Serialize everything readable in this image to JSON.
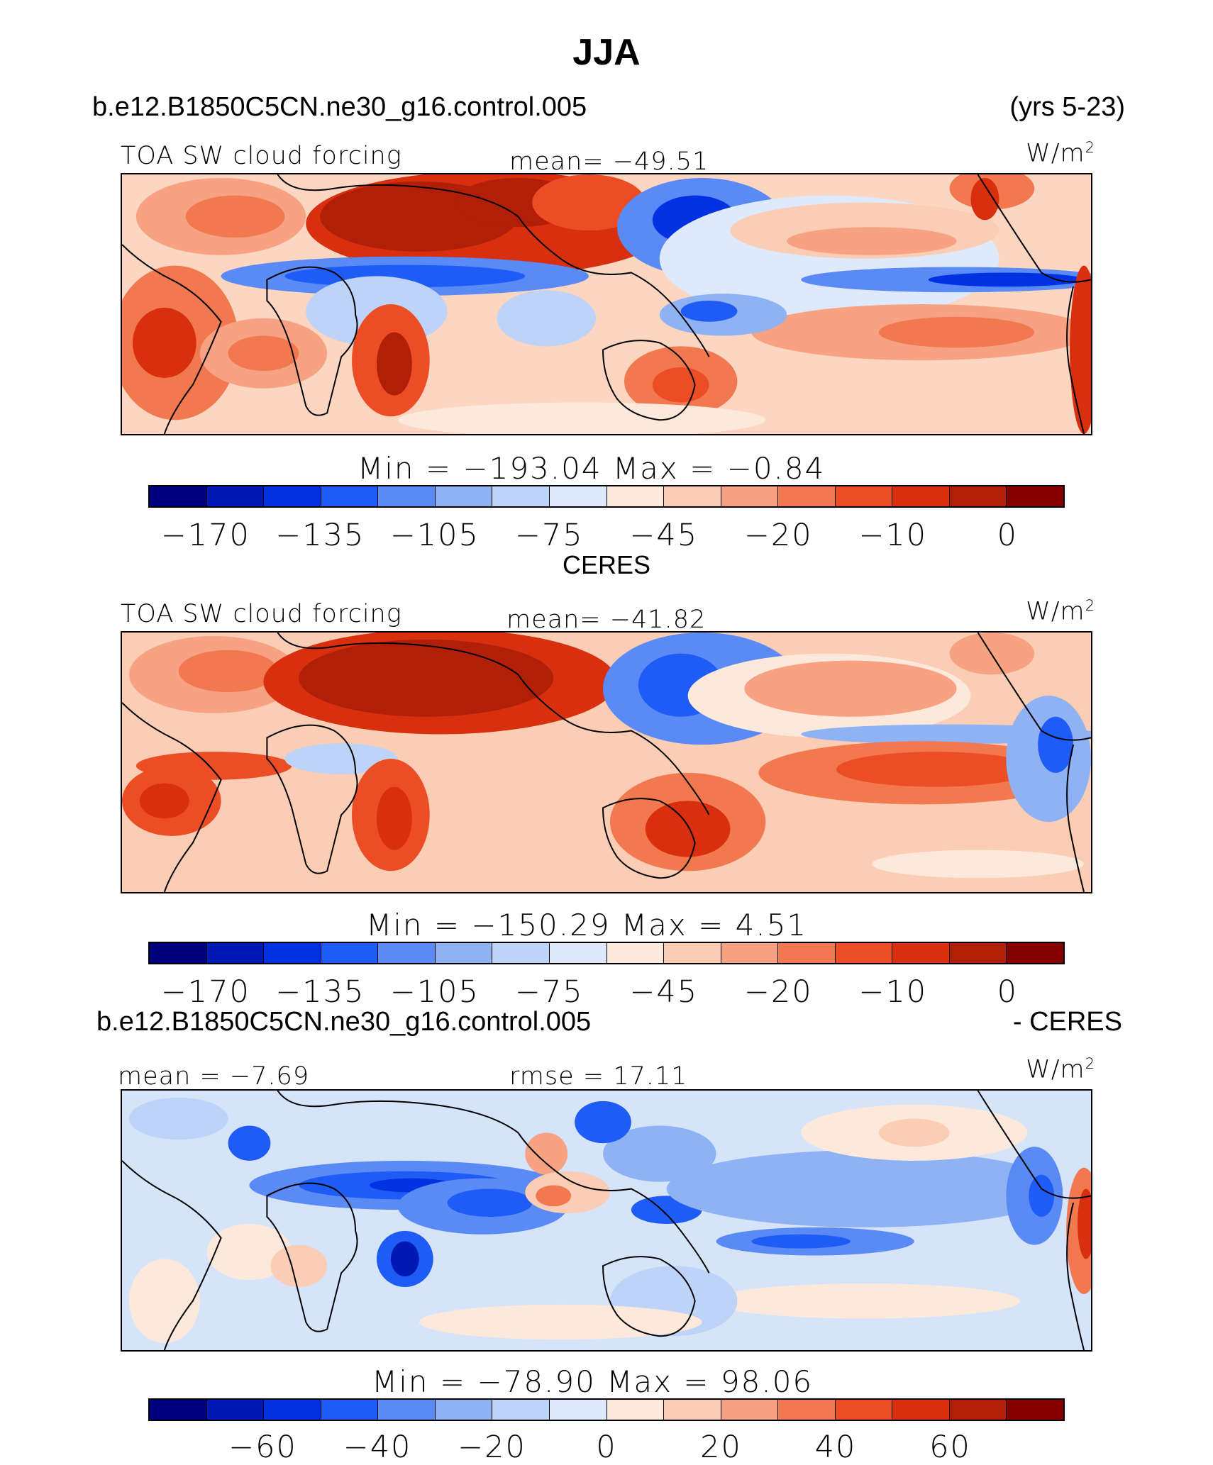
{
  "title": "JJA",
  "panels": [
    {
      "left_title": "b.e12.B1850C5CN.ne30_g16.control.005",
      "right_title": "(yrs 5-23)",
      "variable": "TOA SW cloud forcing",
      "center": "mean= −49.51",
      "units": "W/m",
      "units_sup": "2",
      "minmax": "Min  = −193.04  Max  =   −0.84",
      "ticks": [
        "−170",
        "−135",
        "−105",
        "−75",
        "−45",
        "−20",
        "−10",
        "0"
      ],
      "colors": [
        "#00007f",
        "#0019b4",
        "#0032e1",
        "#1f5cf5",
        "#5a8af5",
        "#8fb2f4",
        "#bdd3f7",
        "#deeafb",
        "#fde9dc",
        "#fbcdb4",
        "#f6a283",
        "#f2784f",
        "#ec4d25",
        "#d8300e",
        "#b11f08",
        "#850000"
      ]
    },
    {
      "left_title": "CERES",
      "right_title": "",
      "variable": "TOA SW cloud forcing",
      "center": "mean= −41.82",
      "units": "W/m",
      "units_sup": "2",
      "minmax": "Min  = −150.29  Max  =    4.51",
      "ticks": [
        "−170",
        "−135",
        "−105",
        "−75",
        "−45",
        "−20",
        "−10",
        "0"
      ],
      "colors": [
        "#00007f",
        "#0019b4",
        "#0032e1",
        "#1f5cf5",
        "#5a8af5",
        "#8fb2f4",
        "#bdd3f7",
        "#deeafb",
        "#fde9dc",
        "#fbcdb4",
        "#f6a283",
        "#f2784f",
        "#ec4d25",
        "#d8300e",
        "#b11f08",
        "#850000"
      ]
    },
    {
      "left_title": "b.e12.B1850C5CN.ne30_g16.control.005",
      "right_title": "- CERES",
      "left_stat": "mean =   −7.69",
      "center": "rmse =   17.11",
      "units": "W/m",
      "units_sup": "2",
      "minmax": "Min  = −78.90  Max  =   98.06",
      "ticks": [
        "−60",
        "−40",
        "−20",
        "0",
        "20",
        "40",
        "60"
      ],
      "colors": [
        "#00007f",
        "#0019b4",
        "#0032e1",
        "#1f5cf5",
        "#5a8af5",
        "#8fb2f4",
        "#bdd3f7",
        "#deeafb",
        "#fde9dc",
        "#fbcdb4",
        "#f6a283",
        "#f2784f",
        "#ec4d25",
        "#d8300e",
        "#b11f08",
        "#850000"
      ]
    }
  ]
}
